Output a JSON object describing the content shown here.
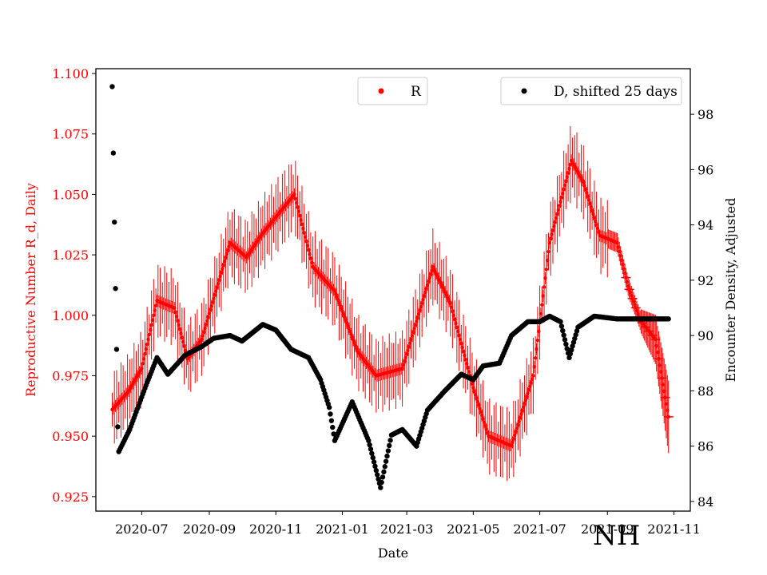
{
  "chart_data": {
    "type": "scatter",
    "xlabel": "Date",
    "ylabel_left": "Reproductive Number R_d, Daily",
    "ylabel_right": "Encounter Density, Adjusted",
    "region_label": "NH",
    "x_range": [
      "2020-05-20",
      "2021-11-16"
    ],
    "ylim_left": [
      0.919,
      1.102
    ],
    "ylim_right": [
      83.65,
      99.65
    ],
    "x_ticks": [
      "2020-07",
      "2020-09",
      "2020-11",
      "2021-01",
      "2021-03",
      "2021-05",
      "2021-07",
      "2021-09",
      "2021-11"
    ],
    "x_tick_dates": [
      "2020-07-01",
      "2020-09-01",
      "2020-11-01",
      "2021-01-01",
      "2021-03-01",
      "2021-05-01",
      "2021-07-01",
      "2021-09-01",
      "2021-11-01"
    ],
    "y_ticks_left": [
      "0.925",
      "0.950",
      "0.975",
      "1.000",
      "1.025",
      "1.050",
      "1.075",
      "1.100"
    ],
    "y_tick_values_left": [
      0.925,
      0.95,
      0.975,
      1.0,
      1.025,
      1.05,
      1.075,
      1.1
    ],
    "y_ticks_right": [
      "84",
      "86",
      "88",
      "90",
      "92",
      "94",
      "96",
      "98"
    ],
    "y_tick_values_right": [
      84,
      86,
      88,
      90,
      92,
      94,
      96,
      98
    ],
    "series": [
      {
        "name": "R",
        "axis": "left",
        "color": "#ff0000",
        "marker": "dot-with-errorbars",
        "start_date": "2020-06-04",
        "end_date": "2021-10-27",
        "keypoints": [
          [
            "2020-06-04",
            0.961
          ],
          [
            "2020-06-18",
            0.968
          ],
          [
            "2020-07-01",
            0.978
          ],
          [
            "2020-07-15",
            1.006
          ],
          [
            "2020-07-31",
            1.003
          ],
          [
            "2020-08-12",
            0.982
          ],
          [
            "2020-08-25",
            0.99
          ],
          [
            "2020-09-20",
            1.03
          ],
          [
            "2020-10-05",
            1.024
          ],
          [
            "2020-10-20",
            1.034
          ],
          [
            "2020-11-18",
            1.05
          ],
          [
            "2020-12-05",
            1.02
          ],
          [
            "2020-12-25",
            1.01
          ],
          [
            "2021-01-15",
            0.985
          ],
          [
            "2021-02-01",
            0.975
          ],
          [
            "2021-02-25",
            0.978
          ],
          [
            "2021-03-25",
            1.02
          ],
          [
            "2021-04-10",
            1.005
          ],
          [
            "2021-05-01",
            0.97
          ],
          [
            "2021-05-15",
            0.95
          ],
          [
            "2021-06-05",
            0.946
          ],
          [
            "2021-06-25",
            0.975
          ],
          [
            "2021-07-10",
            1.03
          ],
          [
            "2021-07-30",
            1.064
          ],
          [
            "2021-08-10",
            1.055
          ],
          [
            "2021-08-25",
            1.033
          ],
          [
            "2021-09-10",
            1.03
          ],
          [
            "2021-09-20",
            1.012
          ],
          [
            "2021-10-01",
            0.998
          ],
          [
            "2021-10-15",
            0.99
          ],
          [
            "2021-10-27",
            0.958
          ]
        ]
      },
      {
        "name": "D, shifted 25 days",
        "axis": "right",
        "color": "#000000",
        "marker": "dot",
        "start_date": "2020-06-04",
        "end_date": "2021-10-27",
        "keypoints": [
          [
            "2020-06-04",
            99.0
          ],
          [
            "2020-06-05",
            96.6
          ],
          [
            "2020-06-06",
            94.1
          ],
          [
            "2020-06-07",
            91.7
          ],
          [
            "2020-06-08",
            89.5
          ],
          [
            "2020-06-09",
            86.7
          ],
          [
            "2020-06-10",
            85.8
          ],
          [
            "2020-06-20",
            86.6
          ],
          [
            "2020-07-05",
            88.2
          ],
          [
            "2020-07-15",
            89.2
          ],
          [
            "2020-07-25",
            88.6
          ],
          [
            "2020-08-10",
            89.3
          ],
          [
            "2020-08-25",
            89.6
          ],
          [
            "2020-09-05",
            89.9
          ],
          [
            "2020-09-20",
            90.0
          ],
          [
            "2020-10-01",
            89.8
          ],
          [
            "2020-10-20",
            90.4
          ],
          [
            "2020-11-01",
            90.2
          ],
          [
            "2020-11-15",
            89.5
          ],
          [
            "2020-12-01",
            89.2
          ],
          [
            "2020-12-12",
            88.4
          ],
          [
            "2020-12-20",
            87.4
          ],
          [
            "2020-12-25",
            86.2
          ],
          [
            "2021-01-10",
            87.6
          ],
          [
            "2021-01-25",
            86.2
          ],
          [
            "2021-02-05",
            84.5
          ],
          [
            "2021-02-15",
            86.4
          ],
          [
            "2021-02-25",
            86.6
          ],
          [
            "2021-03-10",
            86.0
          ],
          [
            "2021-03-20",
            87.3
          ],
          [
            "2021-04-05",
            88.0
          ],
          [
            "2021-04-20",
            88.6
          ],
          [
            "2021-05-01",
            88.4
          ],
          [
            "2021-05-10",
            88.9
          ],
          [
            "2021-05-25",
            89.0
          ],
          [
            "2021-06-05",
            90.0
          ],
          [
            "2021-06-20",
            90.5
          ],
          [
            "2021-07-01",
            90.5
          ],
          [
            "2021-07-10",
            90.7
          ],
          [
            "2021-07-20",
            90.5
          ],
          [
            "2021-07-28",
            89.2
          ],
          [
            "2021-08-05",
            90.3
          ],
          [
            "2021-08-20",
            90.7
          ],
          [
            "2021-09-10",
            90.6
          ],
          [
            "2021-10-27",
            90.6
          ]
        ]
      }
    ]
  }
}
